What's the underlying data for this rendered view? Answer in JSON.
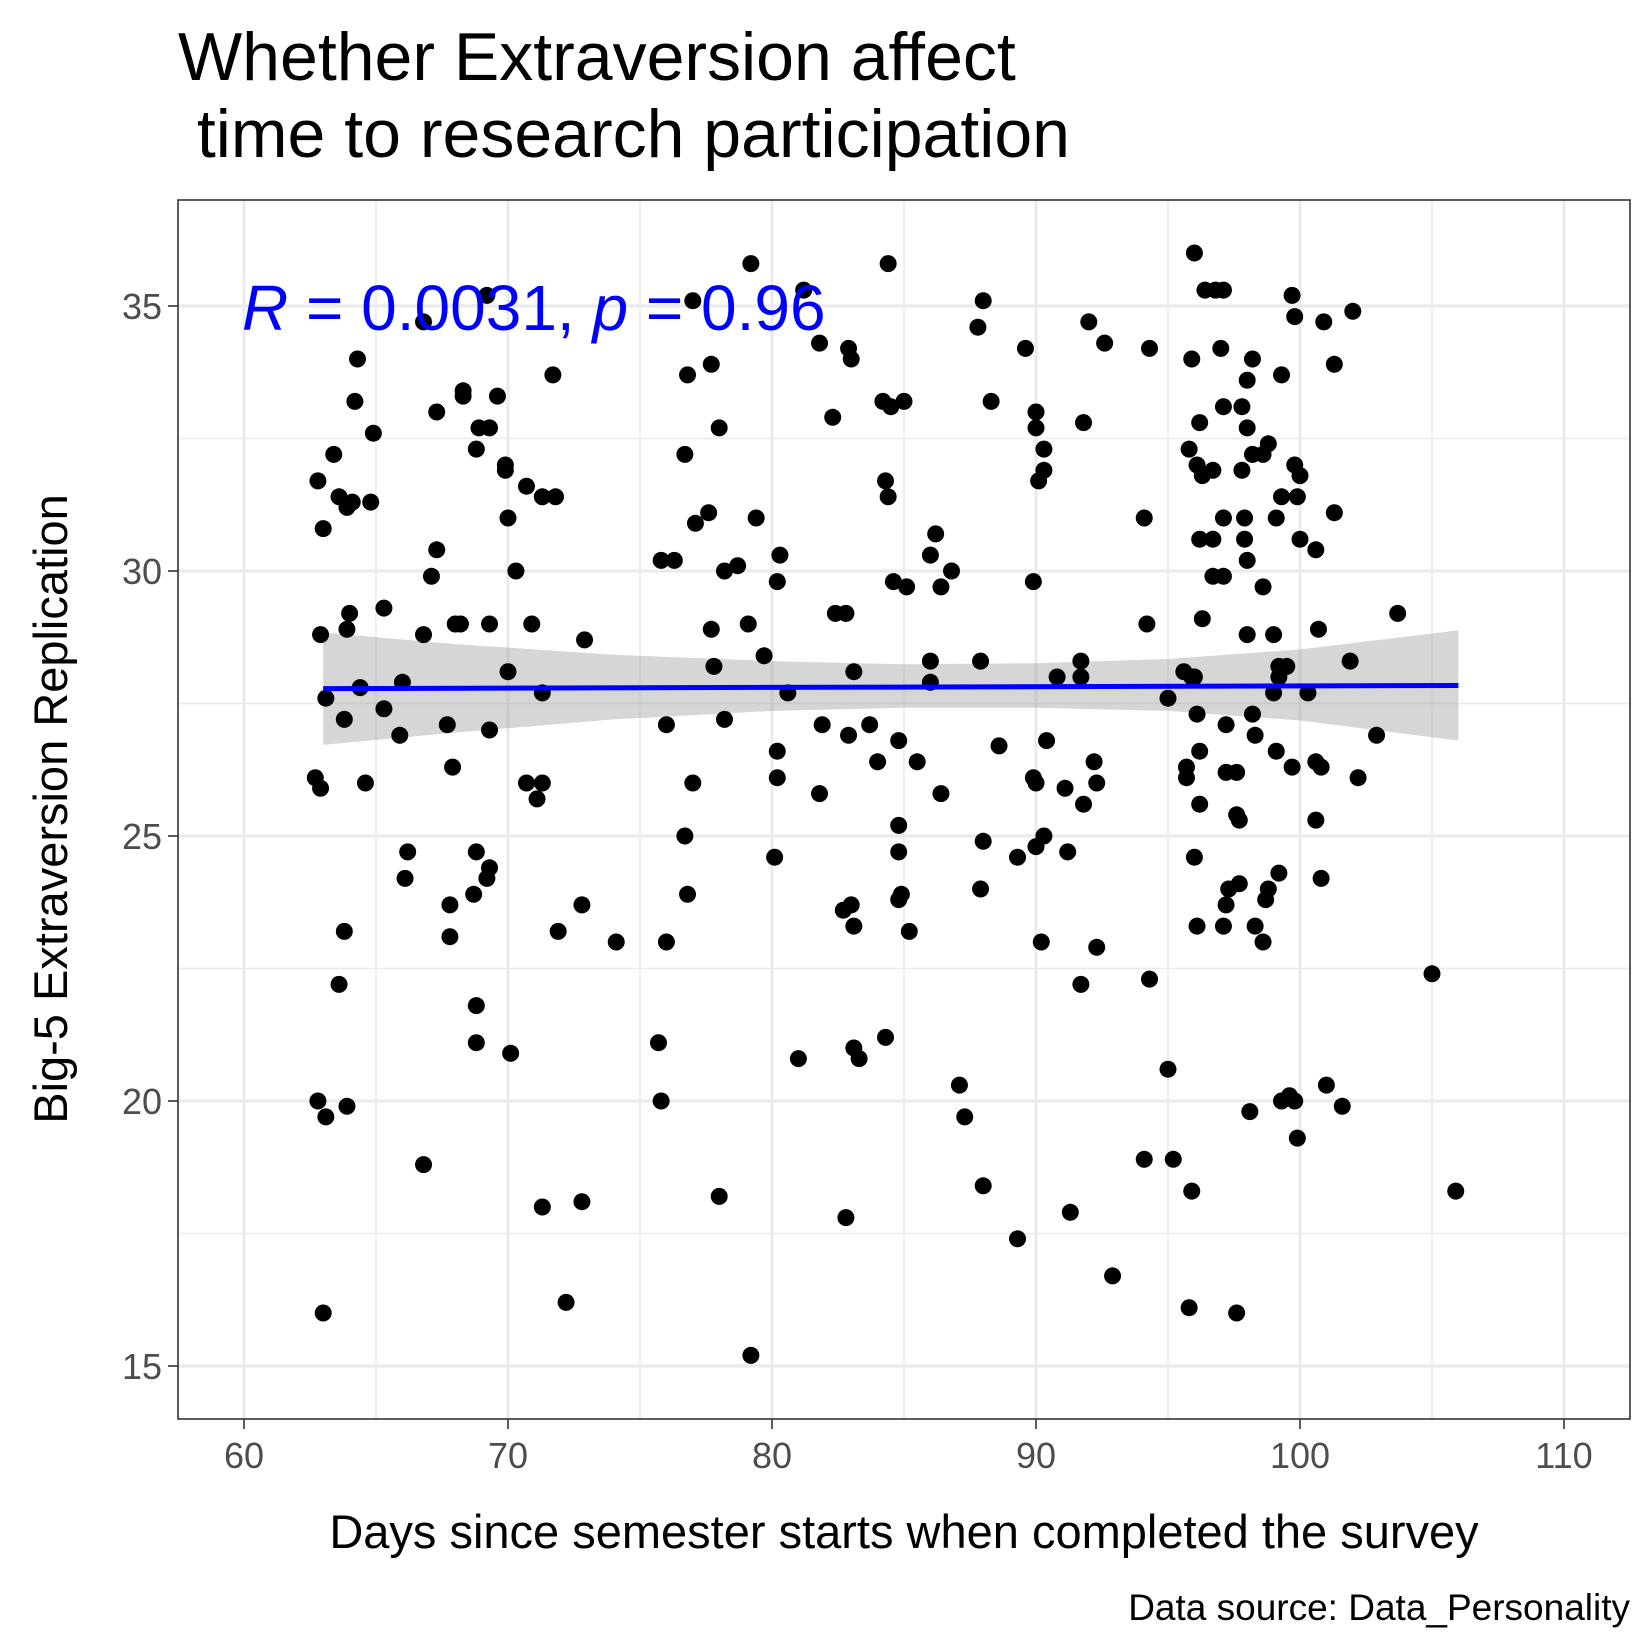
{
  "chart_data": {
    "type": "scatter",
    "title_lines": [
      "Whether Extraversion affect",
      " time to research participation"
    ],
    "xlabel": "Days since semester starts when completed the survey",
    "ylabel": "Big-5 Extraversion Replication",
    "caption": "Data source: Data_Personality",
    "annotation": {
      "R_symbol": "R",
      "R_rest": " = 0.0031, ",
      "p_symbol": "p",
      "p_rest": " = 0.96",
      "color": "#0000ff"
    },
    "xlim": [
      57.5,
      112.5
    ],
    "ylim": [
      14,
      37
    ],
    "x_ticks": [
      60,
      70,
      80,
      90,
      100,
      110
    ],
    "y_ticks": [
      15,
      20,
      25,
      30,
      35
    ],
    "x_tick_labels": [
      "60",
      "70",
      "80",
      "90",
      "100",
      "110"
    ],
    "y_tick_labels": [
      "15",
      "20",
      "25",
      "30",
      "35"
    ],
    "grid": true,
    "point_color": "#000000",
    "fit": {
      "method": "linear",
      "color": "#0000ff",
      "x_range": [
        63,
        106
      ],
      "y_start": 27.78,
      "y_end": 27.84,
      "band": [
        [
          63,
          26.72,
          28.84
        ],
        [
          68,
          26.95,
          28.62
        ],
        [
          74,
          27.2,
          28.42
        ],
        [
          80,
          27.36,
          28.3
        ],
        [
          85,
          27.42,
          28.24
        ],
        [
          90,
          27.42,
          28.26
        ],
        [
          95,
          27.36,
          28.34
        ],
        [
          100,
          27.18,
          28.52
        ],
        [
          106,
          26.8,
          28.88
        ]
      ]
    },
    "points": [
      [
        62.8,
        31.7
      ],
      [
        63.0,
        30.8
      ],
      [
        62.9,
        28.8
      ],
      [
        63.1,
        27.6
      ],
      [
        62.7,
        26.1
      ],
      [
        62.9,
        25.9
      ],
      [
        62.8,
        20.0
      ],
      [
        63.1,
        19.7
      ],
      [
        63.0,
        16.0
      ],
      [
        63.4,
        32.2
      ],
      [
        63.6,
        31.4
      ],
      [
        63.9,
        31.2
      ],
      [
        64.1,
        31.3
      ],
      [
        64.2,
        33.2
      ],
      [
        64.3,
        34.0
      ],
      [
        64.0,
        29.2
      ],
      [
        63.9,
        28.9
      ],
      [
        64.4,
        27.8
      ],
      [
        63.8,
        27.2
      ],
      [
        64.6,
        26.0
      ],
      [
        63.8,
        23.2
      ],
      [
        63.6,
        22.2
      ],
      [
        63.9,
        19.9
      ],
      [
        64.9,
        32.6
      ],
      [
        64.8,
        31.3
      ],
      [
        65.3,
        29.3
      ],
      [
        65.3,
        27.4
      ],
      [
        65.9,
        26.9
      ],
      [
        66.0,
        27.9
      ],
      [
        66.2,
        24.7
      ],
      [
        66.1,
        24.2
      ],
      [
        66.8,
        34.7
      ],
      [
        66.8,
        28.8
      ],
      [
        67.1,
        29.9
      ],
      [
        67.3,
        30.4
      ],
      [
        67.3,
        33.0
      ],
      [
        67.7,
        27.1
      ],
      [
        67.9,
        26.3
      ],
      [
        67.8,
        23.7
      ],
      [
        67.8,
        23.1
      ],
      [
        66.8,
        18.8
      ],
      [
        68.0,
        29.0
      ],
      [
        68.2,
        29.0
      ],
      [
        68.3,
        33.4
      ],
      [
        68.3,
        33.3
      ],
      [
        68.8,
        32.3
      ],
      [
        68.9,
        32.7
      ],
      [
        69.2,
        35.2
      ],
      [
        69.3,
        32.7
      ],
      [
        69.6,
        33.3
      ],
      [
        69.9,
        31.9
      ],
      [
        69.9,
        32.0
      ],
      [
        70.0,
        31.0
      ],
      [
        69.3,
        29.0
      ],
      [
        70.0,
        28.1
      ],
      [
        69.3,
        27.0
      ],
      [
        68.8,
        24.7
      ],
      [
        69.3,
        24.4
      ],
      [
        69.2,
        24.2
      ],
      [
        68.7,
        23.9
      ],
      [
        68.8,
        21.8
      ],
      [
        68.8,
        21.1
      ],
      [
        70.1,
        20.9
      ],
      [
        70.3,
        30.0
      ],
      [
        70.7,
        31.6
      ],
      [
        71.3,
        31.4
      ],
      [
        71.8,
        31.4
      ],
      [
        70.9,
        29.0
      ],
      [
        71.3,
        27.7
      ],
      [
        70.7,
        26.0
      ],
      [
        71.3,
        26.0
      ],
      [
        71.1,
        25.7
      ],
      [
        71.7,
        33.7
      ],
      [
        72.9,
        28.7
      ],
      [
        71.9,
        23.2
      ],
      [
        72.8,
        23.7
      ],
      [
        71.3,
        18.0
      ],
      [
        72.8,
        18.1
      ],
      [
        72.2,
        16.2
      ],
      [
        74.1,
        23.0
      ],
      [
        75.8,
        30.2
      ],
      [
        76.3,
        30.2
      ],
      [
        76.0,
        27.1
      ],
      [
        75.7,
        21.1
      ],
      [
        75.8,
        20.0
      ],
      [
        76.0,
        23.0
      ],
      [
        76.7,
        25.0
      ],
      [
        76.8,
        23.9
      ],
      [
        77.0,
        35.1
      ],
      [
        76.8,
        33.7
      ],
      [
        77.7,
        33.9
      ],
      [
        76.7,
        32.2
      ],
      [
        77.1,
        30.9
      ],
      [
        77.6,
        31.1
      ],
      [
        77.7,
        28.9
      ],
      [
        77.8,
        28.2
      ],
      [
        77.0,
        26.0
      ],
      [
        78.0,
        32.7
      ],
      [
        78.2,
        30.0
      ],
      [
        78.7,
        30.1
      ],
      [
        78.2,
        27.2
      ],
      [
        78.0,
        18.2
      ],
      [
        79.2,
        35.8
      ],
      [
        79.4,
        31.0
      ],
      [
        79.1,
        29.0
      ],
      [
        79.7,
        28.4
      ],
      [
        80.2,
        29.8
      ],
      [
        80.3,
        30.3
      ],
      [
        80.2,
        26.6
      ],
      [
        80.2,
        26.1
      ],
      [
        80.1,
        24.6
      ],
      [
        80.6,
        27.7
      ],
      [
        81.0,
        20.8
      ],
      [
        79.2,
        15.2
      ],
      [
        81.2,
        35.3
      ],
      [
        81.8,
        34.3
      ],
      [
        82.3,
        32.9
      ],
      [
        81.9,
        27.1
      ],
      [
        81.8,
        25.8
      ],
      [
        82.4,
        29.2
      ],
      [
        82.8,
        29.2
      ],
      [
        83.0,
        34.0
      ],
      [
        82.9,
        34.2
      ],
      [
        83.1,
        28.1
      ],
      [
        82.9,
        26.9
      ],
      [
        83.0,
        23.7
      ],
      [
        82.7,
        23.6
      ],
      [
        83.1,
        23.3
      ],
      [
        83.1,
        21.0
      ],
      [
        83.3,
        20.8
      ],
      [
        82.8,
        17.8
      ],
      [
        83.7,
        27.1
      ],
      [
        84.0,
        26.4
      ],
      [
        84.2,
        33.2
      ],
      [
        84.5,
        33.1
      ],
      [
        84.4,
        35.8
      ],
      [
        84.3,
        31.7
      ],
      [
        84.4,
        31.4
      ],
      [
        84.6,
        29.8
      ],
      [
        84.8,
        26.8
      ],
      [
        84.8,
        25.2
      ],
      [
        84.8,
        24.7
      ],
      [
        84.9,
        23.9
      ],
      [
        84.8,
        23.8
      ],
      [
        84.3,
        21.2
      ],
      [
        85.0,
        33.2
      ],
      [
        85.1,
        29.7
      ],
      [
        85.2,
        23.2
      ],
      [
        85.5,
        26.4
      ],
      [
        86.0,
        30.3
      ],
      [
        86.2,
        30.7
      ],
      [
        86.0,
        28.3
      ],
      [
        86.0,
        27.9
      ],
      [
        86.4,
        29.7
      ],
      [
        86.4,
        25.8
      ],
      [
        86.8,
        30.0
      ],
      [
        87.1,
        20.3
      ],
      [
        87.3,
        19.7
      ],
      [
        87.8,
        34.6
      ],
      [
        88.0,
        35.1
      ],
      [
        88.3,
        33.2
      ],
      [
        87.9,
        28.3
      ],
      [
        88.0,
        24.9
      ],
      [
        87.9,
        24.0
      ],
      [
        88.0,
        18.4
      ],
      [
        88.6,
        26.7
      ],
      [
        89.3,
        24.6
      ],
      [
        89.6,
        34.2
      ],
      [
        89.9,
        29.8
      ],
      [
        90.0,
        33.0
      ],
      [
        90.0,
        32.7
      ],
      [
        90.3,
        32.3
      ],
      [
        90.3,
        31.9
      ],
      [
        90.1,
        31.7
      ],
      [
        89.9,
        26.1
      ],
      [
        90.0,
        26.0
      ],
      [
        90.0,
        24.8
      ],
      [
        90.3,
        25.0
      ],
      [
        90.2,
        23.0
      ],
      [
        90.4,
        26.8
      ],
      [
        89.3,
        17.4
      ],
      [
        90.8,
        28.0
      ],
      [
        91.1,
        25.9
      ],
      [
        91.2,
        24.7
      ],
      [
        91.3,
        17.9
      ],
      [
        91.7,
        28.3
      ],
      [
        91.7,
        28.0
      ],
      [
        91.8,
        32.8
      ],
      [
        92.0,
        34.7
      ],
      [
        92.2,
        26.4
      ],
      [
        92.3,
        26.0
      ],
      [
        91.8,
        25.6
      ],
      [
        91.7,
        22.2
      ],
      [
        92.3,
        22.9
      ],
      [
        92.6,
        34.3
      ],
      [
        92.9,
        16.7
      ],
      [
        94.1,
        31.0
      ],
      [
        94.3,
        34.2
      ],
      [
        94.2,
        29.0
      ],
      [
        94.3,
        22.3
      ],
      [
        94.1,
        18.9
      ],
      [
        95.0,
        27.6
      ],
      [
        95.0,
        20.6
      ],
      [
        95.2,
        18.9
      ],
      [
        95.6,
        28.1
      ],
      [
        95.7,
        26.3
      ],
      [
        95.7,
        26.1
      ],
      [
        95.8,
        32.3
      ],
      [
        95.9,
        34.0
      ],
      [
        95.9,
        28.0
      ],
      [
        96.0,
        36.0
      ],
      [
        96.1,
        32.0
      ],
      [
        96.2,
        32.8
      ],
      [
        96.2,
        30.6
      ],
      [
        96.0,
        28.0
      ],
      [
        96.1,
        27.3
      ],
      [
        96.0,
        24.6
      ],
      [
        96.1,
        23.3
      ],
      [
        96.2,
        26.6
      ],
      [
        96.2,
        25.6
      ],
      [
        96.3,
        31.8
      ],
      [
        96.3,
        29.1
      ],
      [
        96.4,
        35.3
      ],
      [
        95.9,
        18.3
      ],
      [
        95.8,
        16.1
      ],
      [
        96.8,
        35.3
      ],
      [
        96.7,
        31.9
      ],
      [
        96.7,
        30.6
      ],
      [
        96.7,
        29.9
      ],
      [
        97.0,
        34.2
      ],
      [
        97.1,
        33.1
      ],
      [
        97.1,
        31.0
      ],
      [
        97.1,
        29.9
      ],
      [
        97.2,
        27.1
      ],
      [
        97.2,
        26.2
      ],
      [
        97.1,
        23.3
      ],
      [
        97.2,
        23.7
      ],
      [
        97.3,
        24.0
      ],
      [
        97.1,
        35.3
      ],
      [
        97.6,
        26.2
      ],
      [
        97.6,
        25.4
      ],
      [
        97.7,
        25.3
      ],
      [
        97.7,
        24.1
      ],
      [
        97.6,
        16.0
      ],
      [
        97.8,
        31.9
      ],
      [
        97.8,
        33.1
      ],
      [
        97.9,
        31.0
      ],
      [
        97.9,
        30.6
      ],
      [
        98.0,
        33.6
      ],
      [
        98.0,
        32.7
      ],
      [
        98.0,
        30.2
      ],
      [
        98.0,
        28.8
      ],
      [
        98.2,
        34.0
      ],
      [
        98.2,
        32.2
      ],
      [
        98.2,
        27.3
      ],
      [
        98.3,
        26.9
      ],
      [
        98.3,
        23.3
      ],
      [
        98.1,
        19.8
      ],
      [
        98.6,
        32.2
      ],
      [
        98.6,
        29.7
      ],
      [
        98.6,
        23.0
      ],
      [
        98.7,
        23.8
      ],
      [
        98.8,
        32.4
      ],
      [
        98.8,
        24.0
      ],
      [
        99.0,
        28.8
      ],
      [
        99.0,
        27.7
      ],
      [
        99.1,
        31.0
      ],
      [
        99.1,
        26.6
      ],
      [
        99.2,
        28.2
      ],
      [
        99.2,
        28.0
      ],
      [
        99.3,
        33.7
      ],
      [
        99.3,
        31.4
      ],
      [
        99.5,
        28.2
      ],
      [
        99.2,
        24.3
      ],
      [
        99.3,
        20.0
      ],
      [
        99.6,
        20.1
      ],
      [
        99.7,
        35.2
      ],
      [
        99.8,
        32.0
      ],
      [
        99.8,
        34.8
      ],
      [
        99.9,
        31.4
      ],
      [
        99.7,
        26.3
      ],
      [
        99.8,
        20.0
      ],
      [
        99.9,
        19.3
      ],
      [
        100.0,
        31.8
      ],
      [
        100.0,
        30.6
      ],
      [
        100.3,
        27.7
      ],
      [
        100.6,
        30.4
      ],
      [
        100.7,
        28.9
      ],
      [
        100.6,
        26.4
      ],
      [
        100.6,
        25.3
      ],
      [
        100.8,
        26.3
      ],
      [
        100.8,
        24.2
      ],
      [
        100.9,
        34.7
      ],
      [
        101.0,
        20.3
      ],
      [
        101.3,
        33.9
      ],
      [
        101.3,
        31.1
      ],
      [
        101.6,
        19.9
      ],
      [
        101.9,
        28.3
      ],
      [
        102.0,
        34.9
      ],
      [
        102.2,
        26.1
      ],
      [
        102.9,
        26.9
      ],
      [
        103.7,
        29.2
      ],
      [
        105.0,
        22.4
      ],
      [
        105.9,
        18.3
      ]
    ]
  }
}
